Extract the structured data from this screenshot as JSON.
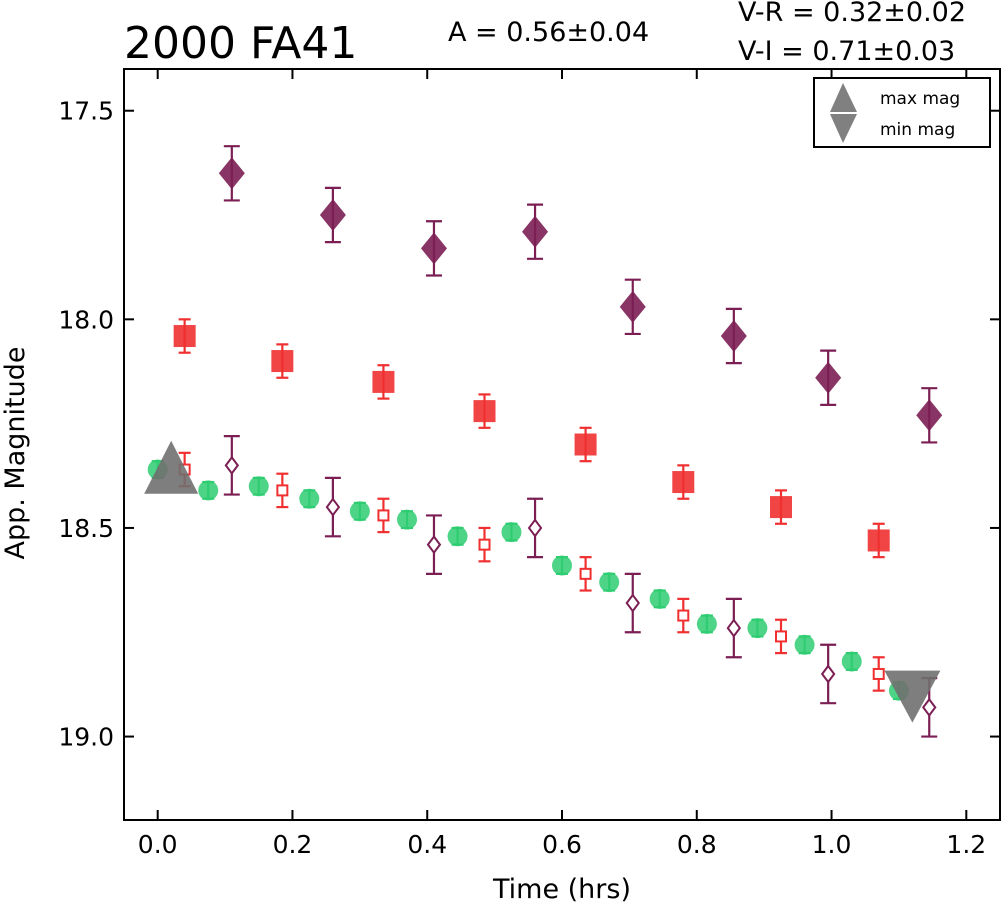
{
  "chart_data": {
    "type": "scatter",
    "title": "2000 FA41",
    "amplitude_text": "A  = 0.56±0.04",
    "color_index_text": [
      "V-R = 0.32±0.02",
      "V-I  = 0.71±0.03"
    ],
    "xlabel": "Time (hrs)",
    "ylabel": "App. Magnitude",
    "xlim": [
      -0.05,
      1.25
    ],
    "ylim": [
      19.2,
      17.4
    ],
    "y_inverted": true,
    "xticks": [
      0.0,
      0.2,
      0.4,
      0.6,
      0.8,
      1.0,
      1.2
    ],
    "xtick_labels": [
      "0.0",
      "0.2",
      "0.4",
      "0.6",
      "0.8",
      "1.0",
      "1.2"
    ],
    "yticks": [
      17.5,
      18.0,
      18.5,
      19.0
    ],
    "ytick_labels": [
      "17.5",
      "18.0",
      "18.5",
      "19.0"
    ],
    "grid": false,
    "legend": {
      "placement": "top-right",
      "entries": [
        {
          "label": "max mag",
          "marker": "triangle-up"
        },
        {
          "label": "min mag",
          "marker": "triangle-down"
        }
      ]
    },
    "colors": {
      "green": "#2ecc71",
      "red": "#f03030",
      "purple": "#7b1e53",
      "gray": "#707070"
    },
    "series": [
      {
        "marker": "circle",
        "color": "#2ecc71",
        "filled": true,
        "points": [
          [
            0.0,
            18.36,
            0.02
          ],
          [
            0.075,
            18.41,
            0.02
          ],
          [
            0.15,
            18.4,
            0.02
          ],
          [
            0.225,
            18.43,
            0.02
          ],
          [
            0.3,
            18.46,
            0.02
          ],
          [
            0.37,
            18.48,
            0.02
          ],
          [
            0.445,
            18.52,
            0.02
          ],
          [
            0.525,
            18.51,
            0.02
          ],
          [
            0.6,
            18.59,
            0.02
          ],
          [
            0.67,
            18.63,
            0.02
          ],
          [
            0.745,
            18.67,
            0.02
          ],
          [
            0.815,
            18.73,
            0.02
          ],
          [
            0.89,
            18.74,
            0.02
          ],
          [
            0.96,
            18.78,
            0.02
          ],
          [
            1.03,
            18.82,
            0.02
          ],
          [
            1.1,
            18.89,
            0.02
          ]
        ]
      },
      {
        "marker": "square",
        "color": "#f03030",
        "filled": true,
        "points": [
          [
            0.04,
            18.04,
            0.04
          ],
          [
            0.185,
            18.1,
            0.04
          ],
          [
            0.335,
            18.15,
            0.04
          ],
          [
            0.485,
            18.22,
            0.04
          ],
          [
            0.635,
            18.3,
            0.04
          ],
          [
            0.78,
            18.39,
            0.04
          ],
          [
            0.925,
            18.45,
            0.04
          ],
          [
            1.07,
            18.53,
            0.04
          ]
        ]
      },
      {
        "marker": "diamond",
        "color": "#7b1e53",
        "filled": true,
        "points": [
          [
            0.11,
            17.65,
            0.065
          ],
          [
            0.26,
            17.75,
            0.065
          ],
          [
            0.41,
            17.83,
            0.065
          ],
          [
            0.56,
            17.79,
            0.065
          ],
          [
            0.705,
            17.97,
            0.065
          ],
          [
            0.855,
            18.04,
            0.065
          ],
          [
            0.995,
            18.14,
            0.065
          ],
          [
            1.145,
            18.23,
            0.065
          ]
        ]
      },
      {
        "marker": "square",
        "color": "#f03030",
        "filled": false,
        "points": [
          [
            0.04,
            18.36,
            0.04
          ],
          [
            0.185,
            18.41,
            0.04
          ],
          [
            0.335,
            18.47,
            0.04
          ],
          [
            0.485,
            18.54,
            0.04
          ],
          [
            0.635,
            18.61,
            0.04
          ],
          [
            0.78,
            18.71,
            0.04
          ],
          [
            0.925,
            18.76,
            0.04
          ],
          [
            1.07,
            18.85,
            0.04
          ]
        ]
      },
      {
        "marker": "diamond",
        "color": "#7b1e53",
        "filled": false,
        "points": [
          [
            0.11,
            18.35,
            0.07
          ],
          [
            0.26,
            18.45,
            0.07
          ],
          [
            0.41,
            18.54,
            0.07
          ],
          [
            0.56,
            18.5,
            0.07
          ],
          [
            0.705,
            18.68,
            0.07
          ],
          [
            0.855,
            18.74,
            0.07
          ],
          [
            0.995,
            18.85,
            0.07
          ],
          [
            1.145,
            18.93,
            0.07
          ]
        ]
      }
    ],
    "extrema": {
      "max_mag": {
        "x": 0.02,
        "y": 18.37
      },
      "min_mag": {
        "x": 1.12,
        "y": 18.89
      }
    }
  }
}
